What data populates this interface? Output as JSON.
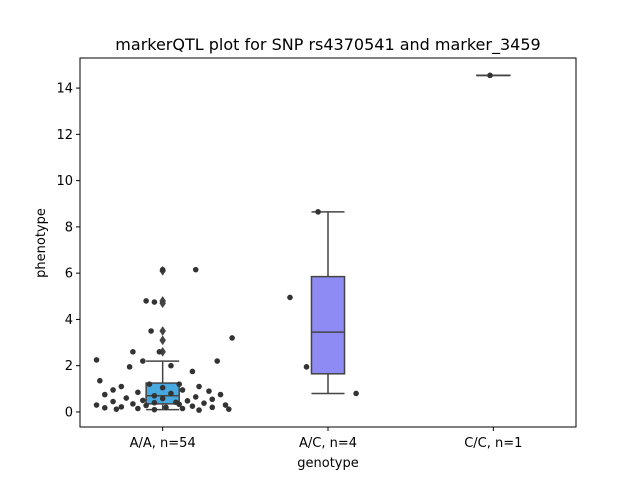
{
  "chart_data": {
    "type": "box",
    "title": "markerQTL plot for SNP rs4370541 and marker_3459",
    "xlabel": "genotype",
    "ylabel": "phenotype",
    "ylim": [
      -0.65,
      15.3
    ],
    "yticks": [
      0,
      2,
      4,
      6,
      8,
      10,
      12,
      14
    ],
    "categories": [
      "A/A, n=54",
      "A/C, n=4",
      "C/C, n=1"
    ],
    "colors": {
      "box_aa": "#48a9e0",
      "box_ac": "#8f8bf5",
      "box_cc": "#8a8af0",
      "line": "#444444",
      "point": "#333333"
    },
    "boxes": [
      {
        "category": "A/A, n=54",
        "q1": 0.35,
        "median": 0.7,
        "q3": 1.25,
        "whisker_low": 0.1,
        "whisker_high": 2.2,
        "outliers": [
          2.6,
          3.1,
          3.5,
          4.7,
          4.8,
          6.1
        ]
      },
      {
        "category": "A/C, n=4",
        "q1": 1.65,
        "median": 3.45,
        "q3": 5.85,
        "whisker_low": 0.8,
        "whisker_high": 8.65,
        "outliers": []
      },
      {
        "category": "C/C, n=1",
        "q1": 14.55,
        "median": 14.55,
        "q3": 14.55,
        "whisker_low": 14.55,
        "whisker_high": 14.55,
        "outliers": []
      }
    ],
    "points": [
      {
        "x": 0.0,
        "y": 6.15
      },
      {
        "x": 0.2,
        "y": 6.15
      },
      {
        "x": -0.1,
        "y": 4.8
      },
      {
        "x": -0.05,
        "y": 4.75
      },
      {
        "x": -0.07,
        "y": 3.5
      },
      {
        "x": 0.42,
        "y": 3.2
      },
      {
        "x": -0.18,
        "y": 2.6
      },
      {
        "x": -0.02,
        "y": 2.6
      },
      {
        "x": -0.4,
        "y": 2.25
      },
      {
        "x": -0.12,
        "y": 2.2
      },
      {
        "x": 0.33,
        "y": 2.2
      },
      {
        "x": -0.2,
        "y": 1.95
      },
      {
        "x": 0.05,
        "y": 2.0
      },
      {
        "x": 0.18,
        "y": 1.75
      },
      {
        "x": -0.38,
        "y": 1.35
      },
      {
        "x": -0.08,
        "y": 1.2
      },
      {
        "x": 0.1,
        "y": 1.2
      },
      {
        "x": -0.25,
        "y": 1.1
      },
      {
        "x": 0.22,
        "y": 1.1
      },
      {
        "x": 0.0,
        "y": 1.05
      },
      {
        "x": -0.3,
        "y": 0.95
      },
      {
        "x": 0.12,
        "y": 0.95
      },
      {
        "x": 0.28,
        "y": 0.9
      },
      {
        "x": -0.15,
        "y": 0.85
      },
      {
        "x": 0.05,
        "y": 0.8
      },
      {
        "x": -0.35,
        "y": 0.75
      },
      {
        "x": 0.35,
        "y": 0.75
      },
      {
        "x": -0.05,
        "y": 0.7
      },
      {
        "x": 0.2,
        "y": 0.65
      },
      {
        "x": -0.22,
        "y": 0.6
      },
      {
        "x": 0.0,
        "y": 0.58
      },
      {
        "x": 0.3,
        "y": 0.55
      },
      {
        "x": -0.12,
        "y": 0.5
      },
      {
        "x": 0.15,
        "y": 0.48
      },
      {
        "x": -0.3,
        "y": 0.45
      },
      {
        "x": 0.08,
        "y": 0.42
      },
      {
        "x": -0.05,
        "y": 0.4
      },
      {
        "x": 0.25,
        "y": 0.38
      },
      {
        "x": -0.18,
        "y": 0.35
      },
      {
        "x": 0.1,
        "y": 0.33
      },
      {
        "x": -0.4,
        "y": 0.3
      },
      {
        "x": 0.38,
        "y": 0.3
      },
      {
        "x": -0.1,
        "y": 0.28
      },
      {
        "x": 0.18,
        "y": 0.25
      },
      {
        "x": -0.25,
        "y": 0.22
      },
      {
        "x": 0.02,
        "y": 0.2
      },
      {
        "x": 0.3,
        "y": 0.2
      },
      {
        "x": -0.35,
        "y": 0.18
      },
      {
        "x": -0.15,
        "y": 0.15
      },
      {
        "x": 0.12,
        "y": 0.15
      },
      {
        "x": 0.4,
        "y": 0.12
      },
      {
        "x": -0.05,
        "y": 0.1
      },
      {
        "x": 0.22,
        "y": 0.08
      },
      {
        "x": -0.28,
        "y": 0.12
      },
      {
        "x": 0.94,
        "y": 8.65
      },
      {
        "x": 0.77,
        "y": 4.95
      },
      {
        "x": 0.87,
        "y": 1.95
      },
      {
        "x": 1.17,
        "y": 0.8
      },
      {
        "x": 1.98,
        "y": 14.55
      }
    ]
  }
}
